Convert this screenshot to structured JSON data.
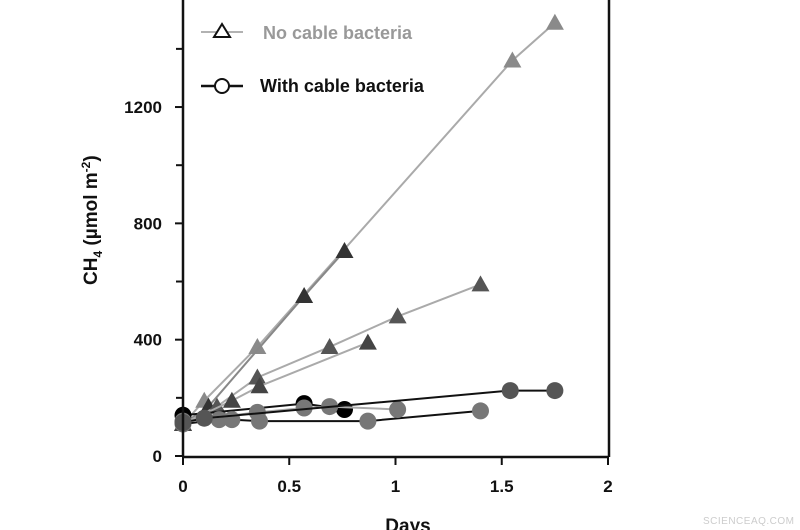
{
  "chart_data": {
    "type": "line",
    "title": "",
    "xlabel": "Days",
    "ylabel_main": "CH",
    "ylabel_sub": "4",
    "ylabel_rest": " (µmol m",
    "ylabel_sup": "-2",
    "ylabel_end": ")",
    "xlim": [
      0,
      2
    ],
    "ylim": [
      0,
      1500
    ],
    "xticks": [
      "0",
      "0.5",
      "1",
      "1.5",
      "2"
    ],
    "xtick_values": [
      0,
      0.5,
      1,
      1.5,
      2
    ],
    "yticks": [
      "0",
      "400",
      "800",
      "1200"
    ],
    "ytick_values": [
      0,
      400,
      800,
      1200
    ],
    "ytick_minor": [
      200,
      600,
      1000,
      1400
    ],
    "grid": false,
    "legend_placement": "top-left",
    "legend": [
      {
        "label": "No cable bacteria",
        "marker": "triangle-open",
        "color": "#999999"
      },
      {
        "label": "With cable bacteria",
        "marker": "circle-open",
        "color": "#111111"
      }
    ],
    "series": [
      {
        "group": "No cable bacteria",
        "marker": "triangle",
        "color": "#8a8a8a",
        "line": "#aaaaaa",
        "points": [
          [
            0,
            110
          ],
          [
            0.1,
            190
          ],
          [
            0.35,
            375
          ],
          [
            1.55,
            1360
          ],
          [
            1.75,
            1490
          ]
        ]
      },
      {
        "group": "No cable bacteria",
        "marker": "triangle",
        "color": "#333333",
        "line": "#888888",
        "points": [
          [
            0,
            110
          ],
          [
            0.12,
            170
          ],
          [
            0.57,
            550
          ],
          [
            0.76,
            705
          ]
        ]
      },
      {
        "group": "No cable bacteria",
        "marker": "triangle",
        "color": "#555555",
        "line": "#aaaaaa",
        "points": [
          [
            0,
            110
          ],
          [
            0.16,
            170
          ],
          [
            0.35,
            270
          ],
          [
            0.69,
            375
          ],
          [
            1.01,
            480
          ],
          [
            1.4,
            590
          ]
        ]
      },
      {
        "group": "No cable bacteria",
        "marker": "triangle",
        "color": "#444444",
        "line": "#aaaaaa",
        "points": [
          [
            0,
            110
          ],
          [
            0.23,
            190
          ],
          [
            0.36,
            240
          ],
          [
            0.87,
            390
          ]
        ]
      },
      {
        "group": "With cable bacteria",
        "marker": "circle",
        "color": "#000000",
        "line": "#111111",
        "points": [
          [
            0,
            140
          ],
          [
            0.57,
            180
          ],
          [
            0.76,
            160
          ]
        ]
      },
      {
        "group": "With cable bacteria",
        "marker": "circle",
        "color": "#777777",
        "line": "#111111",
        "points": [
          [
            0,
            110
          ],
          [
            0.17,
            125
          ],
          [
            0.23,
            125
          ],
          [
            0.36,
            120
          ],
          [
            0.87,
            120
          ],
          [
            1.4,
            155
          ]
        ]
      },
      {
        "group": "With cable bacteria",
        "marker": "circle",
        "color": "#777777",
        "line": "#aaaaaa",
        "points": [
          [
            0,
            120
          ],
          [
            0.35,
            150
          ],
          [
            0.57,
            165
          ],
          [
            0.69,
            170
          ],
          [
            1.01,
            160
          ]
        ]
      },
      {
        "group": "With cable bacteria",
        "marker": "circle",
        "color": "#555555",
        "line": "#111111",
        "points": [
          [
            0,
            115
          ],
          [
            0.1,
            130
          ],
          [
            1.54,
            225
          ],
          [
            1.75,
            225
          ]
        ]
      }
    ]
  },
  "watermark": "SCIENCEAQ.COM"
}
